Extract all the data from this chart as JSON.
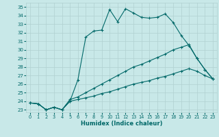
{
  "xlabel": "Humidex (Indice chaleur)",
  "bg_color": "#c8e8e8",
  "grid_color": "#b0d0d0",
  "line_color": "#006868",
  "xlim": [
    -0.5,
    23.5
  ],
  "ylim": [
    22.7,
    35.5
  ],
  "yticks": [
    23,
    24,
    25,
    26,
    27,
    28,
    29,
    30,
    31,
    32,
    33,
    34,
    35
  ],
  "xticks": [
    0,
    1,
    2,
    3,
    4,
    5,
    6,
    7,
    8,
    9,
    10,
    11,
    12,
    13,
    14,
    15,
    16,
    17,
    18,
    19,
    20,
    21,
    22,
    23
  ],
  "line1_x": [
    0,
    1,
    2,
    3,
    4,
    5,
    6,
    7,
    8,
    9,
    10,
    11,
    12,
    13,
    14,
    15,
    16,
    17,
    18,
    19,
    20,
    21,
    22,
    23
  ],
  "line1_y": [
    23.8,
    23.7,
    23.0,
    23.3,
    23.0,
    24.0,
    26.5,
    31.5,
    32.2,
    32.3,
    34.7,
    33.3,
    34.8,
    34.3,
    33.8,
    33.7,
    33.8,
    34.2,
    33.2,
    31.7,
    30.5,
    29.0,
    27.7,
    26.6
  ],
  "line2_x": [
    0,
    1,
    2,
    3,
    4,
    5,
    6,
    7,
    8,
    9,
    10,
    11,
    12,
    13,
    14,
    15,
    16,
    17,
    18,
    19,
    20,
    21,
    22,
    23
  ],
  "line2_y": [
    23.8,
    23.7,
    23.0,
    23.3,
    23.0,
    24.2,
    24.5,
    25.0,
    25.5,
    26.0,
    26.5,
    27.0,
    27.5,
    28.0,
    28.3,
    28.7,
    29.1,
    29.5,
    30.0,
    30.3,
    30.6,
    29.0,
    27.7,
    26.6
  ],
  "line3_x": [
    0,
    1,
    2,
    3,
    4,
    5,
    6,
    7,
    8,
    9,
    10,
    11,
    12,
    13,
    14,
    15,
    16,
    17,
    18,
    19,
    20,
    21,
    22,
    23
  ],
  "line3_y": [
    23.8,
    23.7,
    23.0,
    23.3,
    23.0,
    24.0,
    24.2,
    24.4,
    24.6,
    24.9,
    25.1,
    25.4,
    25.7,
    26.0,
    26.2,
    26.4,
    26.7,
    26.9,
    27.2,
    27.5,
    27.8,
    27.5,
    27.0,
    26.6
  ]
}
